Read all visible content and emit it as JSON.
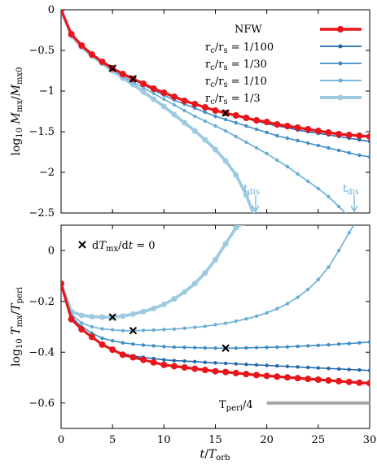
{
  "chart_data": [
    {
      "type": "line",
      "panel": "top",
      "xlim": [
        0,
        30
      ],
      "ylim": [
        -2.5,
        0
      ],
      "xticks": [
        0,
        5,
        10,
        15,
        20,
        25,
        30
      ],
      "yticks": [
        0,
        -0.5,
        -1,
        -1.5,
        -2,
        -2.5
      ],
      "ytick_labels": [
        "0",
        "−0.5",
        "−1",
        "−1.5",
        "−2",
        "−2.5"
      ],
      "ylabel": "log10 Mmx/Mmx0",
      "xlabel": "",
      "grid": false,
      "legend_position": "top-right",
      "series": [
        {
          "name": "NFW",
          "color": "#e8151b",
          "x": [
            0,
            1,
            2,
            3,
            4,
            5,
            6,
            7,
            8,
            9,
            10,
            11,
            12,
            13,
            14,
            15,
            16,
            17,
            18,
            19,
            20,
            21,
            22,
            23,
            24,
            25,
            26,
            27,
            28,
            29,
            30
          ],
          "y": [
            0,
            -0.3,
            -0.44,
            -0.55,
            -0.64,
            -0.72,
            -0.79,
            -0.85,
            -0.91,
            -0.97,
            -1.02,
            -1.07,
            -1.12,
            -1.16,
            -1.2,
            -1.24,
            -1.27,
            -1.3,
            -1.33,
            -1.36,
            -1.38,
            -1.41,
            -1.43,
            -1.45,
            -1.47,
            -1.49,
            -1.51,
            -1.53,
            -1.54,
            -1.55,
            -1.56
          ]
        },
        {
          "name": "rc/rs = 1/100",
          "color": "#2166ac",
          "x": [
            0,
            1,
            2,
            3,
            4,
            5,
            6,
            7,
            8,
            9,
            10,
            11,
            12,
            13,
            14,
            15,
            16,
            17,
            18,
            19,
            20,
            21,
            22,
            23,
            24,
            25,
            26,
            27,
            28,
            29,
            30
          ],
          "y": [
            0,
            -0.3,
            -0.44,
            -0.55,
            -0.64,
            -0.72,
            -0.79,
            -0.85,
            -0.91,
            -0.97,
            -1.02,
            -1.07,
            -1.12,
            -1.16,
            -1.2,
            -1.24,
            -1.27,
            -1.3,
            -1.34,
            -1.37,
            -1.4,
            -1.43,
            -1.45,
            -1.48,
            -1.5,
            -1.52,
            -1.54,
            -1.56,
            -1.58,
            -1.6,
            -1.62
          ]
        },
        {
          "name": "rc/rs = 1/30",
          "color": "#3f8dc6",
          "x": [
            0,
            1,
            2,
            3,
            4,
            5,
            6,
            7,
            8,
            9,
            10,
            11,
            12,
            13,
            14,
            15,
            16,
            17,
            18,
            19,
            20,
            21,
            22,
            23,
            24,
            25,
            26,
            27,
            28,
            29,
            30
          ],
          "y": [
            0,
            -0.3,
            -0.44,
            -0.55,
            -0.64,
            -0.72,
            -0.79,
            -0.86,
            -0.92,
            -0.99,
            -1.05,
            -1.11,
            -1.16,
            -1.21,
            -1.26,
            -1.31,
            -1.35,
            -1.39,
            -1.43,
            -1.47,
            -1.51,
            -1.55,
            -1.58,
            -1.61,
            -1.64,
            -1.67,
            -1.7,
            -1.73,
            -1.76,
            -1.79,
            -1.81
          ]
        },
        {
          "name": "rc/rs = 1/10",
          "color": "#6baed6",
          "x": [
            0,
            1,
            2,
            3,
            4,
            5,
            6,
            7,
            8,
            9,
            10,
            11,
            12,
            13,
            14,
            15,
            16,
            17,
            18,
            19,
            20,
            21,
            22,
            23,
            24,
            25,
            26,
            27,
            28.4
          ],
          "y": [
            0,
            -0.3,
            -0.45,
            -0.56,
            -0.65,
            -0.74,
            -0.82,
            -0.89,
            -0.96,
            -1.03,
            -1.1,
            -1.17,
            -1.24,
            -1.31,
            -1.37,
            -1.43,
            -1.49,
            -1.56,
            -1.63,
            -1.7,
            -1.77,
            -1.85,
            -1.93,
            -2.02,
            -2.11,
            -2.2,
            -2.3,
            -2.42,
            -2.6
          ]
        },
        {
          "name": "rc/rs = 1/3",
          "color": "#9ecae1",
          "x": [
            0,
            1,
            2,
            3,
            4,
            5,
            6,
            7,
            8,
            9,
            10,
            11,
            12,
            13,
            14,
            15,
            16,
            17,
            18,
            19
          ],
          "y": [
            0,
            -0.32,
            -0.46,
            -0.57,
            -0.66,
            -0.75,
            -0.84,
            -0.92,
            -1.01,
            -1.1,
            -1.19,
            -1.29,
            -1.39,
            -1.49,
            -1.6,
            -1.72,
            -1.86,
            -2.03,
            -2.28,
            -2.6
          ]
        }
      ],
      "markers": [
        {
          "x": 5,
          "y": -0.72
        },
        {
          "x": 7,
          "y": -0.85
        },
        {
          "x": 16,
          "y": -1.27
        }
      ],
      "annotations": [
        {
          "text": "tdis",
          "x": 19,
          "y": -2.35
        },
        {
          "text": "tdis",
          "x": 28.4,
          "y": -2.35
        }
      ]
    },
    {
      "type": "line",
      "panel": "bottom",
      "xlim": [
        0,
        30
      ],
      "ylim": [
        -0.7,
        0.1
      ],
      "xticks": [
        0,
        5,
        10,
        15,
        20,
        25,
        30
      ],
      "yticks": [
        0,
        -0.2,
        -0.4,
        -0.6
      ],
      "ytick_labels": [
        "0",
        "−0.2",
        "−0.4",
        "−0.6"
      ],
      "ylabel": "log10 Tmx/Tperi",
      "xlabel": "t/Torb",
      "grid": false,
      "series": [
        {
          "name": "NFW",
          "color": "#e8151b",
          "x": [
            0,
            1,
            2,
            3,
            4,
            5,
            6,
            7,
            8,
            9,
            10,
            11,
            12,
            13,
            14,
            15,
            16,
            17,
            18,
            19,
            20,
            21,
            22,
            23,
            24,
            25,
            26,
            27,
            28,
            29,
            30
          ],
          "y": [
            -0.13,
            -0.27,
            -0.31,
            -0.34,
            -0.37,
            -0.39,
            -0.41,
            -0.42,
            -0.43,
            -0.44,
            -0.45,
            -0.455,
            -0.46,
            -0.465,
            -0.47,
            -0.475,
            -0.478,
            -0.482,
            -0.486,
            -0.49,
            -0.493,
            -0.496,
            -0.499,
            -0.502,
            -0.505,
            -0.508,
            -0.511,
            -0.514,
            -0.517,
            -0.52,
            -0.522
          ]
        },
        {
          "name": "rc/rs = 1/100",
          "color": "#2166ac",
          "x": [
            0,
            1,
            2,
            3,
            4,
            5,
            6,
            7,
            8,
            9,
            10,
            11,
            12,
            13,
            14,
            15,
            16,
            17,
            18,
            19,
            20,
            21,
            22,
            23,
            24,
            25,
            26,
            27,
            28,
            29,
            30
          ],
          "y": [
            -0.13,
            -0.27,
            -0.31,
            -0.34,
            -0.37,
            -0.39,
            -0.405,
            -0.415,
            -0.42,
            -0.425,
            -0.43,
            -0.433,
            -0.435,
            -0.437,
            -0.44,
            -0.442,
            -0.444,
            -0.446,
            -0.448,
            -0.45,
            -0.452,
            -0.454,
            -0.456,
            -0.458,
            -0.46,
            -0.462,
            -0.464,
            -0.466,
            -0.468,
            -0.47,
            -0.472
          ]
        },
        {
          "name": "rc/rs = 1/30",
          "color": "#3f8dc6",
          "x": [
            0,
            1,
            2,
            3,
            4,
            5,
            6,
            7,
            8,
            9,
            10,
            11,
            12,
            13,
            14,
            15,
            16,
            17,
            18,
            19,
            20,
            21,
            22,
            23,
            24,
            25,
            26,
            27,
            28,
            29,
            30
          ],
          "y": [
            -0.13,
            -0.26,
            -0.3,
            -0.325,
            -0.345,
            -0.355,
            -0.363,
            -0.368,
            -0.372,
            -0.375,
            -0.378,
            -0.38,
            -0.381,
            -0.382,
            -0.383,
            -0.384,
            -0.384,
            -0.384,
            -0.383,
            -0.382,
            -0.381,
            -0.38,
            -0.379,
            -0.377,
            -0.375,
            -0.373,
            -0.371,
            -0.368,
            -0.366,
            -0.363,
            -0.36
          ]
        },
        {
          "name": "rc/rs = 1/10",
          "color": "#6baed6",
          "x": [
            0,
            1,
            2,
            3,
            4,
            5,
            6,
            7,
            8,
            9,
            10,
            11,
            12,
            13,
            14,
            15,
            16,
            17,
            18,
            19,
            20,
            21,
            22,
            23,
            24,
            25,
            26,
            27,
            28,
            28.6
          ],
          "y": [
            -0.13,
            -0.25,
            -0.285,
            -0.3,
            -0.308,
            -0.312,
            -0.315,
            -0.315,
            -0.314,
            -0.313,
            -0.311,
            -0.309,
            -0.306,
            -0.302,
            -0.298,
            -0.292,
            -0.286,
            -0.278,
            -0.269,
            -0.258,
            -0.245,
            -0.229,
            -0.209,
            -0.184,
            -0.153,
            -0.114,
            -0.065,
            0.0,
            0.07,
            0.11
          ]
        },
        {
          "name": "rc/rs = 1/3",
          "color": "#9ecae1",
          "x": [
            0,
            1,
            2,
            3,
            4,
            5,
            6,
            7,
            8,
            9,
            10,
            11,
            12,
            13,
            14,
            15,
            16,
            17,
            17.8
          ],
          "y": [
            -0.13,
            -0.24,
            -0.255,
            -0.26,
            -0.262,
            -0.262,
            -0.258,
            -0.25,
            -0.24,
            -0.228,
            -0.212,
            -0.19,
            -0.163,
            -0.13,
            -0.088,
            -0.036,
            0.027,
            0.09,
            0.11
          ]
        }
      ],
      "markers": [
        {
          "x": 5,
          "y": -0.262
        },
        {
          "x": 7,
          "y": -0.315
        },
        {
          "x": 16,
          "y": -0.384
        }
      ],
      "marker_legend": "dTmx/dt = 0",
      "reference_line": {
        "label": "Tperi/4",
        "x": [
          20,
          30
        ],
        "y": -0.6,
        "color": "#a6a6a6"
      }
    }
  ]
}
